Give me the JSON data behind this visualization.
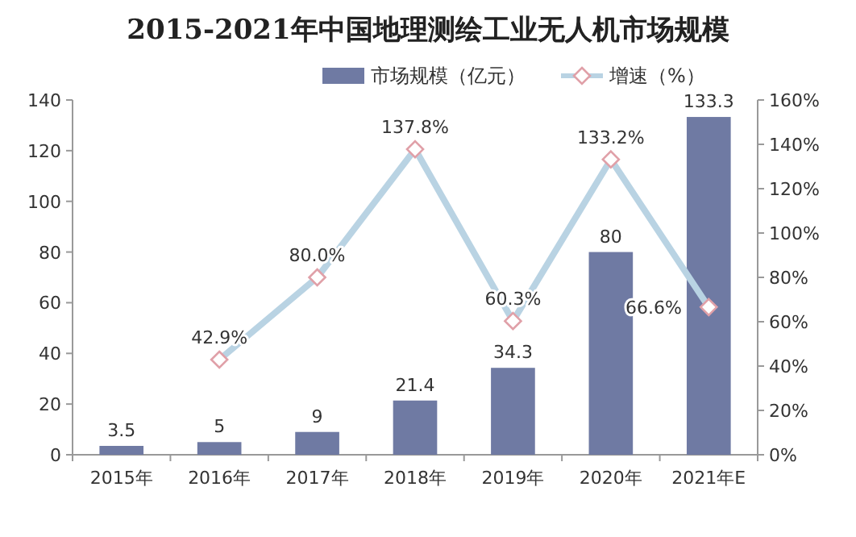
{
  "chart_data": {
    "type": "bar",
    "title": "2015-2021年中国地理测绘工业无人机市场规模",
    "categories": [
      "2015年",
      "2016年",
      "2017年",
      "2018年",
      "2019年",
      "2020年",
      "2021年E"
    ],
    "series": [
      {
        "name": "市场规模（亿元）",
        "color": "#6f7aa3",
        "values": [
          3.5,
          5,
          9,
          21.4,
          34.3,
          80,
          133.3
        ]
      },
      {
        "name": "增速（%）",
        "type": "line",
        "axis": "y2",
        "color": "#b9d3e3",
        "values": [
          null,
          42.9,
          80.0,
          137.8,
          60.3,
          133.2,
          66.6
        ],
        "value_labels": [
          null,
          "42.9%",
          "80.0%",
          "137.8%",
          "60.3%",
          "133.2%",
          "66.6%"
        ]
      }
    ],
    "ylim": [
      0,
      140
    ],
    "yticks": [
      0,
      20,
      40,
      60,
      80,
      100,
      120,
      140
    ],
    "y2lim": [
      0,
      160
    ],
    "y2ticks": [
      {
        "value": 0,
        "label": "0%"
      },
      {
        "value": 20,
        "label": "20%"
      },
      {
        "value": 40,
        "label": "40%"
      },
      {
        "value": 60,
        "label": "60%"
      },
      {
        "value": 80,
        "label": "80%"
      },
      {
        "value": 100,
        "label": "100%"
      },
      {
        "value": 120,
        "label": "120%"
      },
      {
        "value": 140,
        "label": "140%"
      },
      {
        "value": 160,
        "label": "160%"
      }
    ],
    "data_labels": true,
    "legend": "top right",
    "marker": "diamond",
    "grid": false
  }
}
